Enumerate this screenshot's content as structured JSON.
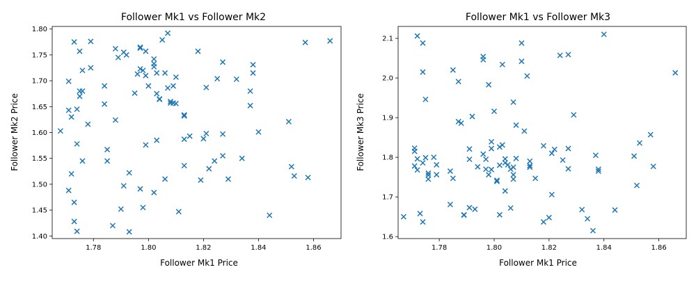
{
  "chart_data": [
    {
      "type": "scatter",
      "title": "Follower Mk1 vs Follower Mk2",
      "xlabel": "Follower Mk1 Price",
      "ylabel": "Follower Mk2 Price",
      "xlim": [
        1.765,
        1.87
      ],
      "ylim": [
        1.395,
        1.805
      ],
      "xticks": [
        "1.78",
        "1.80",
        "1.82",
        "1.84",
        "1.86"
      ],
      "xtick_values": [
        1.78,
        1.8,
        1.82,
        1.84,
        1.86
      ],
      "yticks": [
        "1.40",
        "1.45",
        "1.50",
        "1.55",
        "1.60",
        "1.65",
        "1.70",
        "1.75",
        "1.80"
      ],
      "ytick_values": [
        1.4,
        1.45,
        1.5,
        1.55,
        1.6,
        1.65,
        1.7,
        1.75,
        1.8
      ],
      "marker": "x",
      "color": "#1f77b4",
      "grid": false,
      "points": [
        [
          1.768,
          1.603
        ],
        [
          1.771,
          1.699
        ],
        [
          1.771,
          1.643
        ],
        [
          1.771,
          1.488
        ],
        [
          1.772,
          1.63
        ],
        [
          1.772,
          1.52
        ],
        [
          1.773,
          1.775
        ],
        [
          1.773,
          1.465
        ],
        [
          1.773,
          1.428
        ],
        [
          1.774,
          1.645
        ],
        [
          1.774,
          1.578
        ],
        [
          1.774,
          1.409
        ],
        [
          1.775,
          1.757
        ],
        [
          1.775,
          1.67
        ],
        [
          1.775,
          1.68
        ],
        [
          1.776,
          1.72
        ],
        [
          1.776,
          1.545
        ],
        [
          1.776,
          1.68
        ],
        [
          1.778,
          1.616
        ],
        [
          1.779,
          1.776
        ],
        [
          1.779,
          1.725
        ],
        [
          1.784,
          1.69
        ],
        [
          1.784,
          1.655
        ],
        [
          1.785,
          1.567
        ],
        [
          1.785,
          1.545
        ],
        [
          1.787,
          1.42
        ],
        [
          1.788,
          1.762
        ],
        [
          1.788,
          1.624
        ],
        [
          1.789,
          1.745
        ],
        [
          1.79,
          1.452
        ],
        [
          1.791,
          1.497
        ],
        [
          1.791,
          1.755
        ],
        [
          1.792,
          1.75
        ],
        [
          1.793,
          1.522
        ],
        [
          1.793,
          1.408
        ],
        [
          1.795,
          1.676
        ],
        [
          1.796,
          1.713
        ],
        [
          1.797,
          1.765
        ],
        [
          1.797,
          1.723
        ],
        [
          1.797,
          1.491
        ],
        [
          1.797,
          1.763
        ],
        [
          1.798,
          1.72
        ],
        [
          1.798,
          1.455
        ],
        [
          1.799,
          1.757
        ],
        [
          1.799,
          1.576
        ],
        [
          1.799,
          1.71
        ],
        [
          1.8,
          1.69
        ],
        [
          1.802,
          1.484
        ],
        [
          1.802,
          1.742
        ],
        [
          1.802,
          1.733
        ],
        [
          1.802,
          1.727
        ],
        [
          1.803,
          1.715
        ],
        [
          1.803,
          1.585
        ],
        [
          1.803,
          1.675
        ],
        [
          1.804,
          1.664
        ],
        [
          1.804,
          1.665
        ],
        [
          1.805,
          1.779
        ],
        [
          1.806,
          1.51
        ],
        [
          1.806,
          1.715
        ],
        [
          1.807,
          1.792
        ],
        [
          1.807,
          1.686
        ],
        [
          1.808,
          1.657
        ],
        [
          1.808,
          1.66
        ],
        [
          1.809,
          1.69
        ],
        [
          1.809,
          1.657
        ],
        [
          1.81,
          1.707
        ],
        [
          1.81,
          1.656
        ],
        [
          1.811,
          1.447
        ],
        [
          1.813,
          1.632
        ],
        [
          1.813,
          1.634
        ],
        [
          1.813,
          1.536
        ],
        [
          1.813,
          1.587
        ],
        [
          1.815,
          1.593
        ],
        [
          1.818,
          1.757
        ],
        [
          1.819,
          1.508
        ],
        [
          1.82,
          1.588
        ],
        [
          1.821,
          1.687
        ],
        [
          1.821,
          1.598
        ],
        [
          1.822,
          1.53
        ],
        [
          1.824,
          1.545
        ],
        [
          1.825,
          1.704
        ],
        [
          1.827,
          1.736
        ],
        [
          1.827,
          1.597
        ],
        [
          1.827,
          1.555
        ],
        [
          1.829,
          1.51
        ],
        [
          1.832,
          1.703
        ],
        [
          1.834,
          1.55
        ],
        [
          1.837,
          1.652
        ],
        [
          1.837,
          1.68
        ],
        [
          1.838,
          1.715
        ],
        [
          1.838,
          1.731
        ],
        [
          1.84,
          1.601
        ],
        [
          1.844,
          1.44
        ],
        [
          1.851,
          1.621
        ],
        [
          1.852,
          1.534
        ],
        [
          1.853,
          1.516
        ],
        [
          1.857,
          1.774
        ],
        [
          1.858,
          1.513
        ],
        [
          1.866,
          1.777
        ]
      ]
    },
    {
      "type": "scatter",
      "title": "Follower Mk1 vs Follower Mk3",
      "xlabel": "Follower Mk1 Price",
      "ylabel": "Follower Mk3 Price",
      "xlim": [
        1.765,
        1.87
      ],
      "ylim": [
        1.595,
        2.13
      ],
      "xticks": [
        "1.78",
        "1.80",
        "1.82",
        "1.84",
        "1.86"
      ],
      "xtick_values": [
        1.78,
        1.8,
        1.82,
        1.84,
        1.86
      ],
      "yticks": [
        "1.6",
        "1.7",
        "1.8",
        "1.9",
        "2.0",
        "2.1"
      ],
      "ytick_values": [
        1.6,
        1.7,
        1.8,
        1.9,
        2.0,
        2.1
      ],
      "marker": "x",
      "color": "#1f77b4",
      "grid": false,
      "points": [
        [
          1.767,
          1.65
        ],
        [
          1.771,
          1.823
        ],
        [
          1.771,
          1.815
        ],
        [
          1.771,
          1.778
        ],
        [
          1.772,
          2.106
        ],
        [
          1.772,
          1.796
        ],
        [
          1.772,
          1.768
        ],
        [
          1.773,
          1.658
        ],
        [
          1.774,
          2.088
        ],
        [
          1.774,
          2.015
        ],
        [
          1.774,
          1.786
        ],
        [
          1.774,
          1.637
        ],
        [
          1.775,
          1.946
        ],
        [
          1.775,
          1.799
        ],
        [
          1.776,
          1.76
        ],
        [
          1.776,
          1.745
        ],
        [
          1.776,
          1.755
        ],
        [
          1.778,
          1.8
        ],
        [
          1.779,
          1.781
        ],
        [
          1.779,
          1.756
        ],
        [
          1.784,
          1.765
        ],
        [
          1.784,
          1.681
        ],
        [
          1.785,
          2.02
        ],
        [
          1.785,
          1.747
        ],
        [
          1.787,
          1.89
        ],
        [
          1.787,
          1.991
        ],
        [
          1.788,
          1.886
        ],
        [
          1.789,
          1.655
        ],
        [
          1.789,
          1.654
        ],
        [
          1.791,
          1.795
        ],
        [
          1.791,
          1.821
        ],
        [
          1.791,
          1.673
        ],
        [
          1.792,
          1.903
        ],
        [
          1.793,
          1.669
        ],
        [
          1.794,
          1.776
        ],
        [
          1.796,
          1.808
        ],
        [
          1.796,
          2.054
        ],
        [
          1.796,
          2.046
        ],
        [
          1.797,
          1.795
        ],
        [
          1.797,
          1.77
        ],
        [
          1.798,
          1.983
        ],
        [
          1.798,
          1.756
        ],
        [
          1.799,
          1.822
        ],
        [
          1.799,
          1.839
        ],
        [
          1.799,
          1.769
        ],
        [
          1.8,
          1.916
        ],
        [
          1.801,
          1.739
        ],
        [
          1.801,
          1.742
        ],
        [
          1.802,
          1.826
        ],
        [
          1.802,
          1.655
        ],
        [
          1.802,
          1.78
        ],
        [
          1.803,
          2.034
        ],
        [
          1.803,
          1.831
        ],
        [
          1.804,
          1.796
        ],
        [
          1.804,
          1.786
        ],
        [
          1.804,
          1.715
        ],
        [
          1.805,
          1.781
        ],
        [
          1.806,
          1.672
        ],
        [
          1.806,
          1.77
        ],
        [
          1.807,
          1.745
        ],
        [
          1.807,
          1.756
        ],
        [
          1.807,
          1.775
        ],
        [
          1.807,
          1.939
        ],
        [
          1.808,
          1.881
        ],
        [
          1.808,
          1.797
        ],
        [
          1.81,
          2.088
        ],
        [
          1.81,
          2.042
        ],
        [
          1.811,
          1.866
        ],
        [
          1.812,
          2.005
        ],
        [
          1.813,
          1.779
        ],
        [
          1.813,
          1.79
        ],
        [
          1.813,
          1.775
        ],
        [
          1.815,
          1.747
        ],
        [
          1.818,
          1.829
        ],
        [
          1.818,
          1.637
        ],
        [
          1.82,
          1.648
        ],
        [
          1.821,
          1.81
        ],
        [
          1.821,
          1.706
        ],
        [
          1.822,
          1.82
        ],
        [
          1.824,
          2.057
        ],
        [
          1.825,
          1.793
        ],
        [
          1.827,
          2.059
        ],
        [
          1.827,
          1.822
        ],
        [
          1.827,
          1.771
        ],
        [
          1.829,
          1.907
        ],
        [
          1.832,
          1.668
        ],
        [
          1.834,
          1.645
        ],
        [
          1.836,
          1.615
        ],
        [
          1.837,
          1.805
        ],
        [
          1.838,
          1.765
        ],
        [
          1.838,
          1.77
        ],
        [
          1.84,
          2.11
        ],
        [
          1.844,
          1.667
        ],
        [
          1.851,
          1.803
        ],
        [
          1.852,
          1.729
        ],
        [
          1.853,
          1.836
        ],
        [
          1.857,
          1.857
        ],
        [
          1.858,
          1.777
        ],
        [
          1.866,
          2.013
        ]
      ]
    }
  ]
}
